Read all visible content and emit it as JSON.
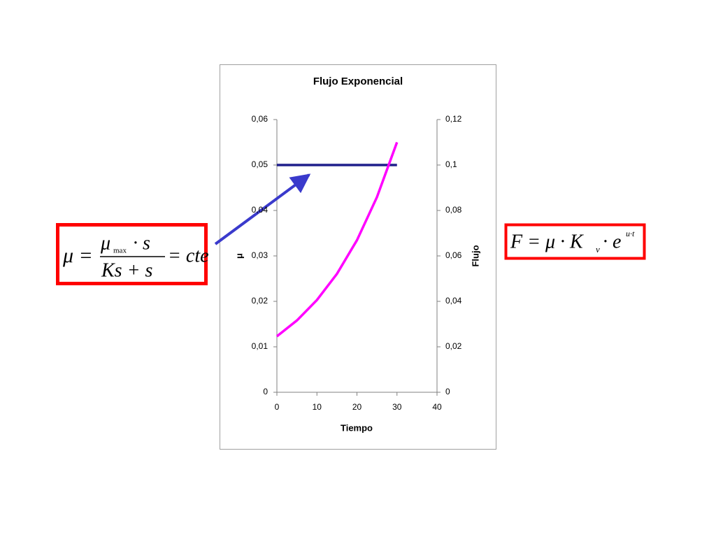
{
  "chart_data": {
    "type": "line",
    "title": "Flujo Exponencial",
    "x_label": "Tiempo",
    "y_label": "μ",
    "y2_label": "Flujo",
    "x": [
      0,
      5,
      10,
      15,
      20,
      25,
      30
    ],
    "series": [
      {
        "color": "#1f1f8c",
        "values": [
          0.05,
          0.05,
          0.05,
          0.05,
          0.05,
          0.05,
          0.05
        ]
      },
      {
        "color": "#ff00ff",
        "axis": "y2",
        "values": [
          0.0246,
          0.0316,
          0.0406,
          0.0521,
          0.0669,
          0.0859,
          0.11
        ]
      }
    ],
    "xlim": [
      0,
      40
    ],
    "xticks": [
      0,
      10,
      20,
      30,
      40
    ],
    "ylim": [
      0,
      0.06
    ],
    "yticks": [
      0,
      {
        "value": 0.01,
        "label": "0,01"
      },
      {
        "value": 0.02,
        "label": "0,02"
      },
      {
        "value": 0.03,
        "label": "0,03"
      },
      {
        "value": 0.04,
        "label": "0,04"
      },
      {
        "value": 0.05,
        "label": "0,05"
      },
      {
        "value": 0.06,
        "label": "0,06"
      }
    ],
    "y2lim": [
      0,
      0.12
    ],
    "y2ticks": [
      0,
      {
        "value": 0.02,
        "label": "0,02"
      },
      {
        "value": 0.04,
        "label": "0,04"
      },
      {
        "value": 0.06,
        "label": "0,06"
      },
      {
        "value": 0.08,
        "label": "0,08"
      },
      {
        "value": 0.1,
        "label": "0,1"
      },
      {
        "value": 0.12,
        "label": "0,12"
      }
    ],
    "grid": false,
    "annotations": [
      {
        "parts": [
          "μ =",
          "μ",
          "max",
          "· s",
          "Ks + s",
          "= cte"
        ]
      },
      {
        "parts": [
          "F = μ · K",
          "v",
          "· e",
          "u·t"
        ]
      }
    ]
  }
}
